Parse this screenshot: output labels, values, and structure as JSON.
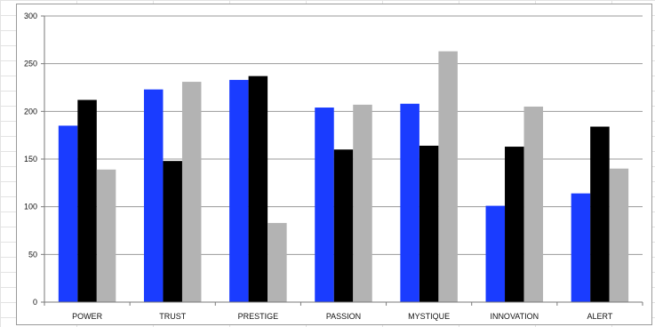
{
  "chart_data": {
    "type": "bar",
    "categories": [
      "POWER",
      "TRUST",
      "PRESTIGE",
      "PASSION",
      "MYSTIQUE",
      "INNOVATION",
      "ALERT"
    ],
    "series": [
      {
        "color": "#1a3cff",
        "values": [
          185,
          223,
          233,
          204,
          208,
          101,
          114
        ]
      },
      {
        "color": "#000000",
        "values": [
          212,
          148,
          237,
          160,
          164,
          163,
          184
        ]
      },
      {
        "color": "#b3b3b3",
        "values": [
          139,
          231,
          83,
          207,
          263,
          205,
          140
        ]
      }
    ],
    "ylim": [
      0,
      300
    ],
    "yticks": [
      0,
      50,
      100,
      150,
      200,
      250,
      300
    ],
    "grid": true,
    "legend": "none"
  }
}
